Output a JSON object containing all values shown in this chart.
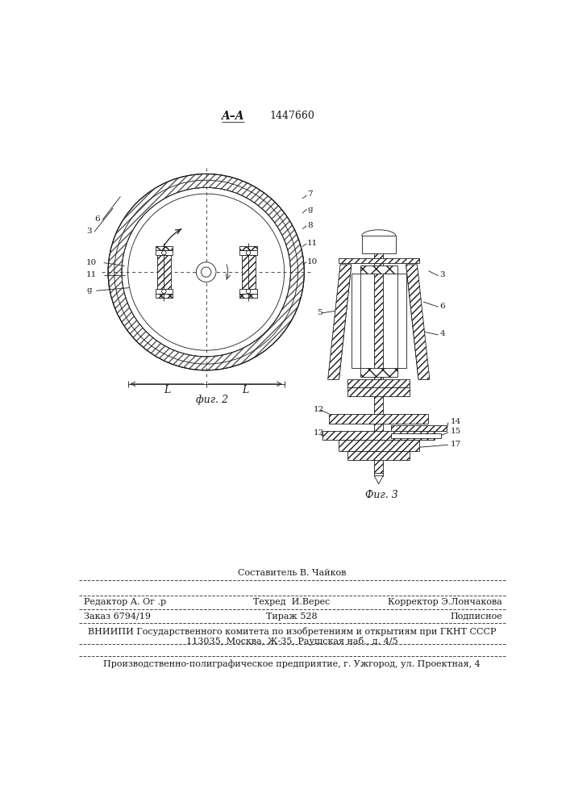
{
  "patent_number": "1447660",
  "background_color": "#ffffff",
  "line_color": "#1a1a1a",
  "fig2_label": "A–A",
  "fig2_caption": "фиг. 2",
  "fig3_caption": "Фиг. 3",
  "footer_line1_col1": "Редактор А. Ог .р",
  "footer_line1_col2": "Техред  И.Верес",
  "footer_line1_col3": "Корректор Э.Лончакова",
  "footer_above_col2": "Составитель В. Чайков",
  "footer_line2_col1": "Заказ 6794/19",
  "footer_line2_col2": "Тираж 528",
  "footer_line2_col3": "Подписное",
  "footer_line3": "ВНИИПИ Государственного комитета по изобретениям и открытиям при ГКНТ СССР",
  "footer_line4": "113035, Москва, Ж-35, Раушская наб., д. 4/5",
  "footer_line5": "Производственно-полиграфическое предприятие, г. Ужгород, ул. Проектная, 4"
}
